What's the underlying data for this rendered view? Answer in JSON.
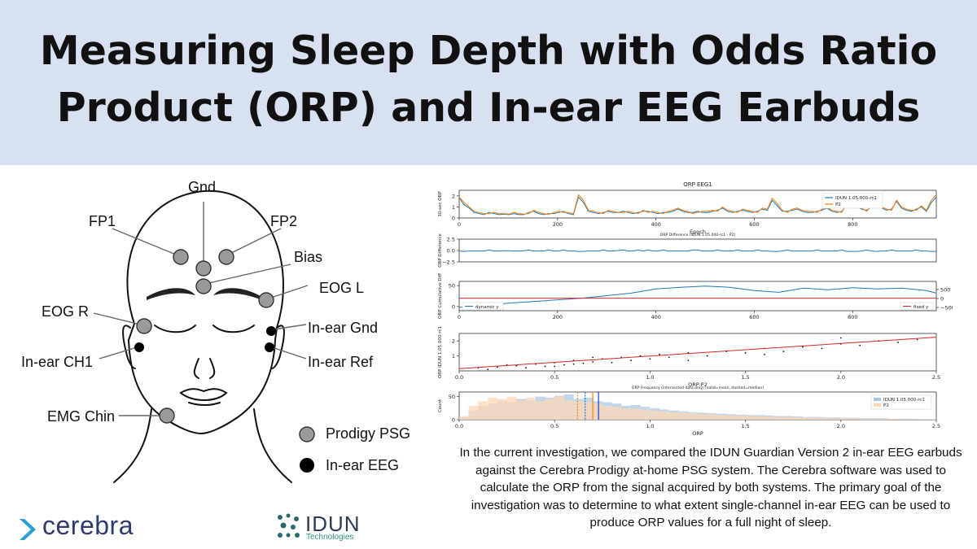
{
  "header": {
    "title_line1": "Measuring Sleep Depth with Odds Ratio",
    "title_line2": "Product (ORP) and In-ear EEG Earbuds"
  },
  "diagram": {
    "labels": {
      "gnd": "Gnd",
      "fp1": "FP1",
      "fp2": "FP2",
      "bias": "Bias",
      "eog_l": "EOG L",
      "eog_r": "EOG R",
      "inear_gnd": "In-ear Gnd",
      "inear_ref": "In-ear Ref",
      "inear_ch1": "In-ear CH1",
      "emg_chin": "EMG Chin"
    },
    "legend": {
      "prodigy": "Prodigy PSG",
      "inear": "In-ear EEG"
    },
    "colors": {
      "prodigy_fill": "#9a9a9a",
      "inear_fill": "#000000"
    }
  },
  "caption": "In the current investigation, we compared the IDUN Guardian Version 2 in-ear EEG earbuds against the Cerebra Prodigy at-home PSG system. The Cerebra software was used to calculate the ORP from the signal acquired by both systems. The primary goal of the investigation was to determine to what extent single-channel in-ear EEG can be used to produce ORP values for a full night of sleep.",
  "logos": {
    "cerebra": "cerebra",
    "idun": "IDUN",
    "idun_sub": "Technologies"
  },
  "chart_data": [
    {
      "type": "line",
      "title": "ORP EEG1",
      "xlabel": "Epoch",
      "ylabel": "30-sec ORP",
      "xlim": [
        0,
        970
      ],
      "ylim": [
        0,
        2.5
      ],
      "xticks": [
        "0",
        "200",
        "400",
        "600",
        "800"
      ],
      "yticks": [
        "0",
        "1",
        "2"
      ],
      "legend": "top-right",
      "series": [
        {
          "name": "IDUN 1.05.000-rc1",
          "color": "#1f77b4",
          "values": [
            1.8,
            1.2,
            0.9,
            0.5,
            0.4,
            0.3,
            0.5,
            0.4,
            0.3,
            0.35,
            0.3,
            0.4,
            0.3,
            0.3,
            0.5,
            0.6,
            0.4,
            0.3,
            0.4,
            0.4,
            0.5,
            0.6,
            0.4,
            0.3,
            1.9,
            1.4,
            0.6,
            0.5,
            0.4,
            0.5,
            0.6,
            0.5,
            0.5,
            0.6,
            0.5,
            0.4,
            0.5,
            0.6,
            0.6,
            0.5,
            0.4,
            0.5,
            0.5,
            0.6,
            0.8,
            0.6,
            0.5,
            0.5,
            0.6,
            0.5,
            0.5,
            0.6,
            0.7,
            0.9,
            0.6,
            0.5,
            0.6,
            0.7,
            0.6,
            0.5,
            0.6,
            0.8,
            0.7,
            1.6,
            1.1,
            0.6,
            0.6,
            0.7,
            0.8,
            0.6,
            0.5,
            0.5,
            0.6,
            0.7,
            0.9,
            0.6,
            0.5,
            0.6,
            1.2,
            1.7,
            1.0,
            0.8,
            0.7,
            1.0,
            1.4,
            0.9,
            0.7,
            0.8,
            1.5,
            0.9,
            0.7,
            0.6,
            0.8,
            1.0,
            0.6,
            1.4,
            1.9
          ]
        },
        {
          "name": "P2",
          "color": "#ff7f0e",
          "values": [
            1.9,
            1.4,
            1.0,
            0.6,
            0.5,
            0.4,
            0.4,
            0.5,
            0.4,
            0.4,
            0.35,
            0.5,
            0.4,
            0.35,
            0.4,
            0.7,
            0.5,
            0.4,
            0.3,
            0.5,
            0.6,
            0.5,
            0.5,
            0.4,
            2.1,
            1.6,
            0.7,
            0.6,
            0.5,
            0.4,
            0.7,
            0.6,
            0.5,
            0.5,
            0.6,
            0.5,
            0.4,
            0.7,
            0.5,
            0.6,
            0.5,
            0.4,
            0.6,
            0.7,
            0.9,
            0.7,
            0.6,
            0.4,
            0.5,
            0.6,
            0.6,
            0.7,
            0.6,
            1.0,
            0.7,
            0.6,
            0.5,
            0.8,
            0.7,
            0.6,
            0.5,
            0.9,
            0.8,
            1.8,
            1.3,
            0.7,
            0.5,
            0.8,
            0.9,
            0.7,
            0.6,
            0.6,
            0.5,
            0.8,
            1.0,
            0.7,
            0.6,
            0.5,
            1.4,
            1.9,
            1.2,
            0.9,
            0.6,
            1.1,
            1.6,
            1.0,
            0.8,
            0.7,
            1.6,
            1.0,
            0.8,
            0.7,
            0.7,
            1.1,
            0.7,
            1.6,
            2.1
          ]
        }
      ]
    },
    {
      "type": "line",
      "title": "ORP Difference (IDUN 1.05.000-rc1 - P2)",
      "xlabel": "",
      "ylabel": "ORP Difference",
      "xlim": [
        0,
        970
      ],
      "ylim": [
        -2.5,
        2.5
      ],
      "yticks": [
        "2.5",
        "0.0",
        "−2.5"
      ],
      "series": [
        {
          "color": "#1f77b4",
          "values": [
            -0.1,
            -0.2,
            -0.1,
            -0.1,
            -0.1,
            -0.1,
            0.1,
            -0.1,
            -0.1,
            -0.05,
            -0.05,
            -0.1,
            -0.1,
            -0.05,
            0.1,
            -0.1,
            -0.1,
            -0.1,
            0.1,
            -0.1,
            -0.1,
            0.1,
            -0.1,
            -0.1,
            -0.2,
            -0.2,
            -0.1,
            -0.1,
            -0.1,
            0.1,
            -0.1,
            -0.1,
            0,
            0.1,
            -0.1,
            -0.1,
            0.1,
            -0.1,
            0.1,
            -0.1,
            -0.1,
            0.1,
            -0.1,
            -0.1,
            -0.1,
            -0.1,
            -0.1,
            0.1,
            0.1,
            -0.1,
            -0.1,
            -0.1,
            0.1,
            -0.1,
            -0.1,
            -0.1,
            0.1,
            -0.1,
            -0.1,
            -0.1,
            0.1,
            -0.1,
            -0.1,
            -0.2,
            -0.2,
            -0.1,
            0.1,
            -0.1,
            -0.1,
            -0.1,
            -0.1,
            -0.1,
            0.1,
            -0.1,
            -0.1,
            -0.1,
            -0.1,
            0.1,
            -0.2,
            -0.2,
            -0.2,
            -0.1,
            0.1,
            -0.1,
            -0.2,
            -0.1,
            -0.1,
            0.1,
            -0.1,
            -0.1,
            -0.1,
            -0.1,
            0.1,
            -0.1,
            -0.1,
            -0.2,
            -0.2
          ]
        }
      ]
    },
    {
      "type": "line",
      "title": "",
      "xlabel": "",
      "ylabel": "ORP Cumulative Diff",
      "xlim": [
        0,
        970
      ],
      "ylim": [
        -10,
        60
      ],
      "xticks": [
        "0",
        "200",
        "400",
        "600",
        "800"
      ],
      "yticks": [
        "50",
        "0"
      ],
      "y2ticks": [
        "500",
        "0",
        "−500"
      ],
      "series": [
        {
          "name": "dynamic y",
          "color": "#1f77b4",
          "x": [
            0,
            50,
            100,
            150,
            200,
            250,
            300,
            350,
            400,
            450,
            500,
            550,
            600,
            650,
            700,
            750,
            800,
            850,
            900,
            950,
            970
          ],
          "values": [
            -2,
            3,
            8,
            12,
            16,
            20,
            26,
            32,
            42,
            46,
            49,
            46,
            38,
            34,
            44,
            40,
            45,
            42,
            44,
            38,
            32
          ]
        },
        {
          "name": "fixed y",
          "color": "#d62728",
          "x": [
            0,
            970
          ],
          "values": [
            20,
            20
          ]
        }
      ],
      "legend": [
        "bottom-left",
        "bottom-right"
      ]
    },
    {
      "type": "scatter",
      "title": "",
      "xlabel": "ORP P2",
      "ylabel": "ORP IDUN 1.05.000-rc1",
      "xlim": [
        0,
        2.5
      ],
      "ylim": [
        0,
        2.5
      ],
      "xticks": [
        "0.0",
        "0.5",
        "1.0",
        "1.5",
        "2.0",
        "2.5"
      ],
      "yticks": [
        "2",
        "1"
      ],
      "trend": {
        "color": "#d62728",
        "x": [
          0,
          2.5
        ],
        "y": [
          0.15,
          2.25
        ]
      },
      "points": [
        [
          0.1,
          0.2
        ],
        [
          0.2,
          0.25
        ],
        [
          0.3,
          0.35
        ],
        [
          0.35,
          0.2
        ],
        [
          0.4,
          0.45
        ],
        [
          0.45,
          0.3
        ],
        [
          0.5,
          0.55
        ],
        [
          0.55,
          0.4
        ],
        [
          0.6,
          0.7
        ],
        [
          0.65,
          0.5
        ],
        [
          0.7,
          0.6
        ],
        [
          0.75,
          0.8
        ],
        [
          0.8,
          0.55
        ],
        [
          0.85,
          0.9
        ],
        [
          0.9,
          0.7
        ],
        [
          0.95,
          1.0
        ],
        [
          1.0,
          0.8
        ],
        [
          1.05,
          1.1
        ],
        [
          1.1,
          0.9
        ],
        [
          1.2,
          1.2
        ],
        [
          1.3,
          1.0
        ],
        [
          1.4,
          1.3
        ],
        [
          1.5,
          1.2
        ],
        [
          1.6,
          1.5
        ],
        [
          1.7,
          1.3
        ],
        [
          1.8,
          1.6
        ],
        [
          1.9,
          1.5
        ],
        [
          2.0,
          1.8
        ],
        [
          2.1,
          1.7
        ],
        [
          2.2,
          2.0
        ],
        [
          2.3,
          1.9
        ],
        [
          2.4,
          2.1
        ],
        [
          0.15,
          0.1
        ],
        [
          0.25,
          0.4
        ],
        [
          0.5,
          0.3
        ],
        [
          0.6,
          0.45
        ],
        [
          0.7,
          0.9
        ],
        [
          1.2,
          0.7
        ],
        [
          1.6,
          1.1
        ],
        [
          2.0,
          2.2
        ]
      ]
    },
    {
      "type": "bar",
      "title": "ORP Frequency (intersected data only) [solid=mean, dashed=median]",
      "xlabel": "ORP",
      "ylabel": "Count",
      "xlim": [
        0,
        2.5
      ],
      "ylim": [
        0,
        60
      ],
      "xticks": [
        "0.0",
        "0.5",
        "1.0",
        "1.5",
        "2.0",
        "2.5"
      ],
      "yticks": [
        "50",
        "0"
      ],
      "bin_edges_start": 0,
      "bin_width": 0.05,
      "series": [
        {
          "name": "IDUN 1.05.000-rc1",
          "color": "#aac8e4",
          "values": [
            5,
            20,
            30,
            35,
            40,
            38,
            45,
            42,
            50,
            48,
            52,
            55,
            45,
            48,
            40,
            38,
            35,
            30,
            32,
            28,
            25,
            22,
            20,
            18,
            16,
            15,
            14,
            13,
            12,
            11,
            10,
            10,
            9,
            8,
            8,
            7,
            6,
            6,
            5,
            5,
            4,
            4,
            3,
            3,
            3,
            2,
            2,
            2,
            1,
            1
          ]
        },
        {
          "name": "P2",
          "color": "#fdd7b5",
          "values": [
            8,
            30,
            40,
            48,
            45,
            50,
            42,
            48,
            40,
            45,
            50,
            42,
            40,
            38,
            35,
            30,
            28,
            25,
            24,
            22,
            20,
            18,
            16,
            15,
            14,
            12,
            12,
            10,
            10,
            9,
            8,
            8,
            7,
            6,
            6,
            5,
            5,
            4,
            4,
            3,
            3,
            3,
            2,
            2,
            2,
            2,
            1,
            1,
            1,
            1
          ]
        }
      ],
      "markers": [
        {
          "x": 0.62,
          "color": "#ff7f0e",
          "style": "dashed"
        },
        {
          "x": 0.66,
          "color": "#1f77b4",
          "style": "dashed"
        },
        {
          "x": 0.7,
          "color": "#ff7f0e",
          "style": "solid"
        },
        {
          "x": 0.73,
          "color": "#1f3cdd",
          "style": "solid"
        }
      ],
      "legend": "top-right"
    }
  ]
}
